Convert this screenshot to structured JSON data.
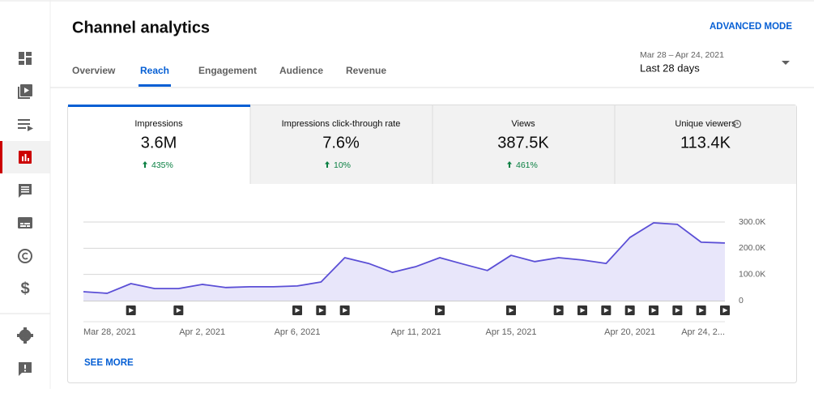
{
  "header": {
    "title": "Channel analytics",
    "advanced_mode": "ADVANCED MODE"
  },
  "tabs": [
    "Overview",
    "Reach",
    "Engagement",
    "Audience",
    "Revenue"
  ],
  "date_range": {
    "range": "Mar 28 – Apr 24, 2021",
    "period": "Last 28 days"
  },
  "metrics": [
    {
      "label": "Impressions",
      "value": "3.6M",
      "change": "435%"
    },
    {
      "label": "Impressions click-through rate",
      "value": "7.6%",
      "change": "10%"
    },
    {
      "label": "Views",
      "value": "387.5K",
      "change": "461%"
    },
    {
      "label": "Unique viewers",
      "value": "113.4K"
    }
  ],
  "chart_data": {
    "type": "line",
    "color": "#5b4fd6",
    "fill": "#e8e6fa",
    "categories": [
      "Mar 28, 2021",
      null,
      null,
      null,
      null,
      "Apr 2, 2021",
      null,
      null,
      null,
      "Apr 6, 2021",
      null,
      null,
      null,
      null,
      "Apr 11, 2021",
      null,
      null,
      null,
      "Apr 15, 2021",
      null,
      null,
      null,
      null,
      "Apr 20, 2021",
      null,
      null,
      null,
      "Apr 24, 2..."
    ],
    "values": [
      34000,
      28000,
      65000,
      46000,
      46000,
      62000,
      50000,
      53000,
      53000,
      56000,
      71000,
      164000,
      142000,
      108000,
      130000,
      164000,
      139000,
      115000,
      173000,
      149000,
      164000,
      155000,
      142000,
      241000,
      297000,
      291000,
      223000,
      220000
    ],
    "ylim": [
      0,
      300000
    ],
    "yticks": [
      0,
      {
        "value": 100000,
        "label": "100.0K"
      },
      {
        "value": 200000,
        "label": "200.0K"
      },
      {
        "value": 300000,
        "label": "300.0K"
      }
    ],
    "grid": true
  },
  "see_more": "SEE MORE"
}
